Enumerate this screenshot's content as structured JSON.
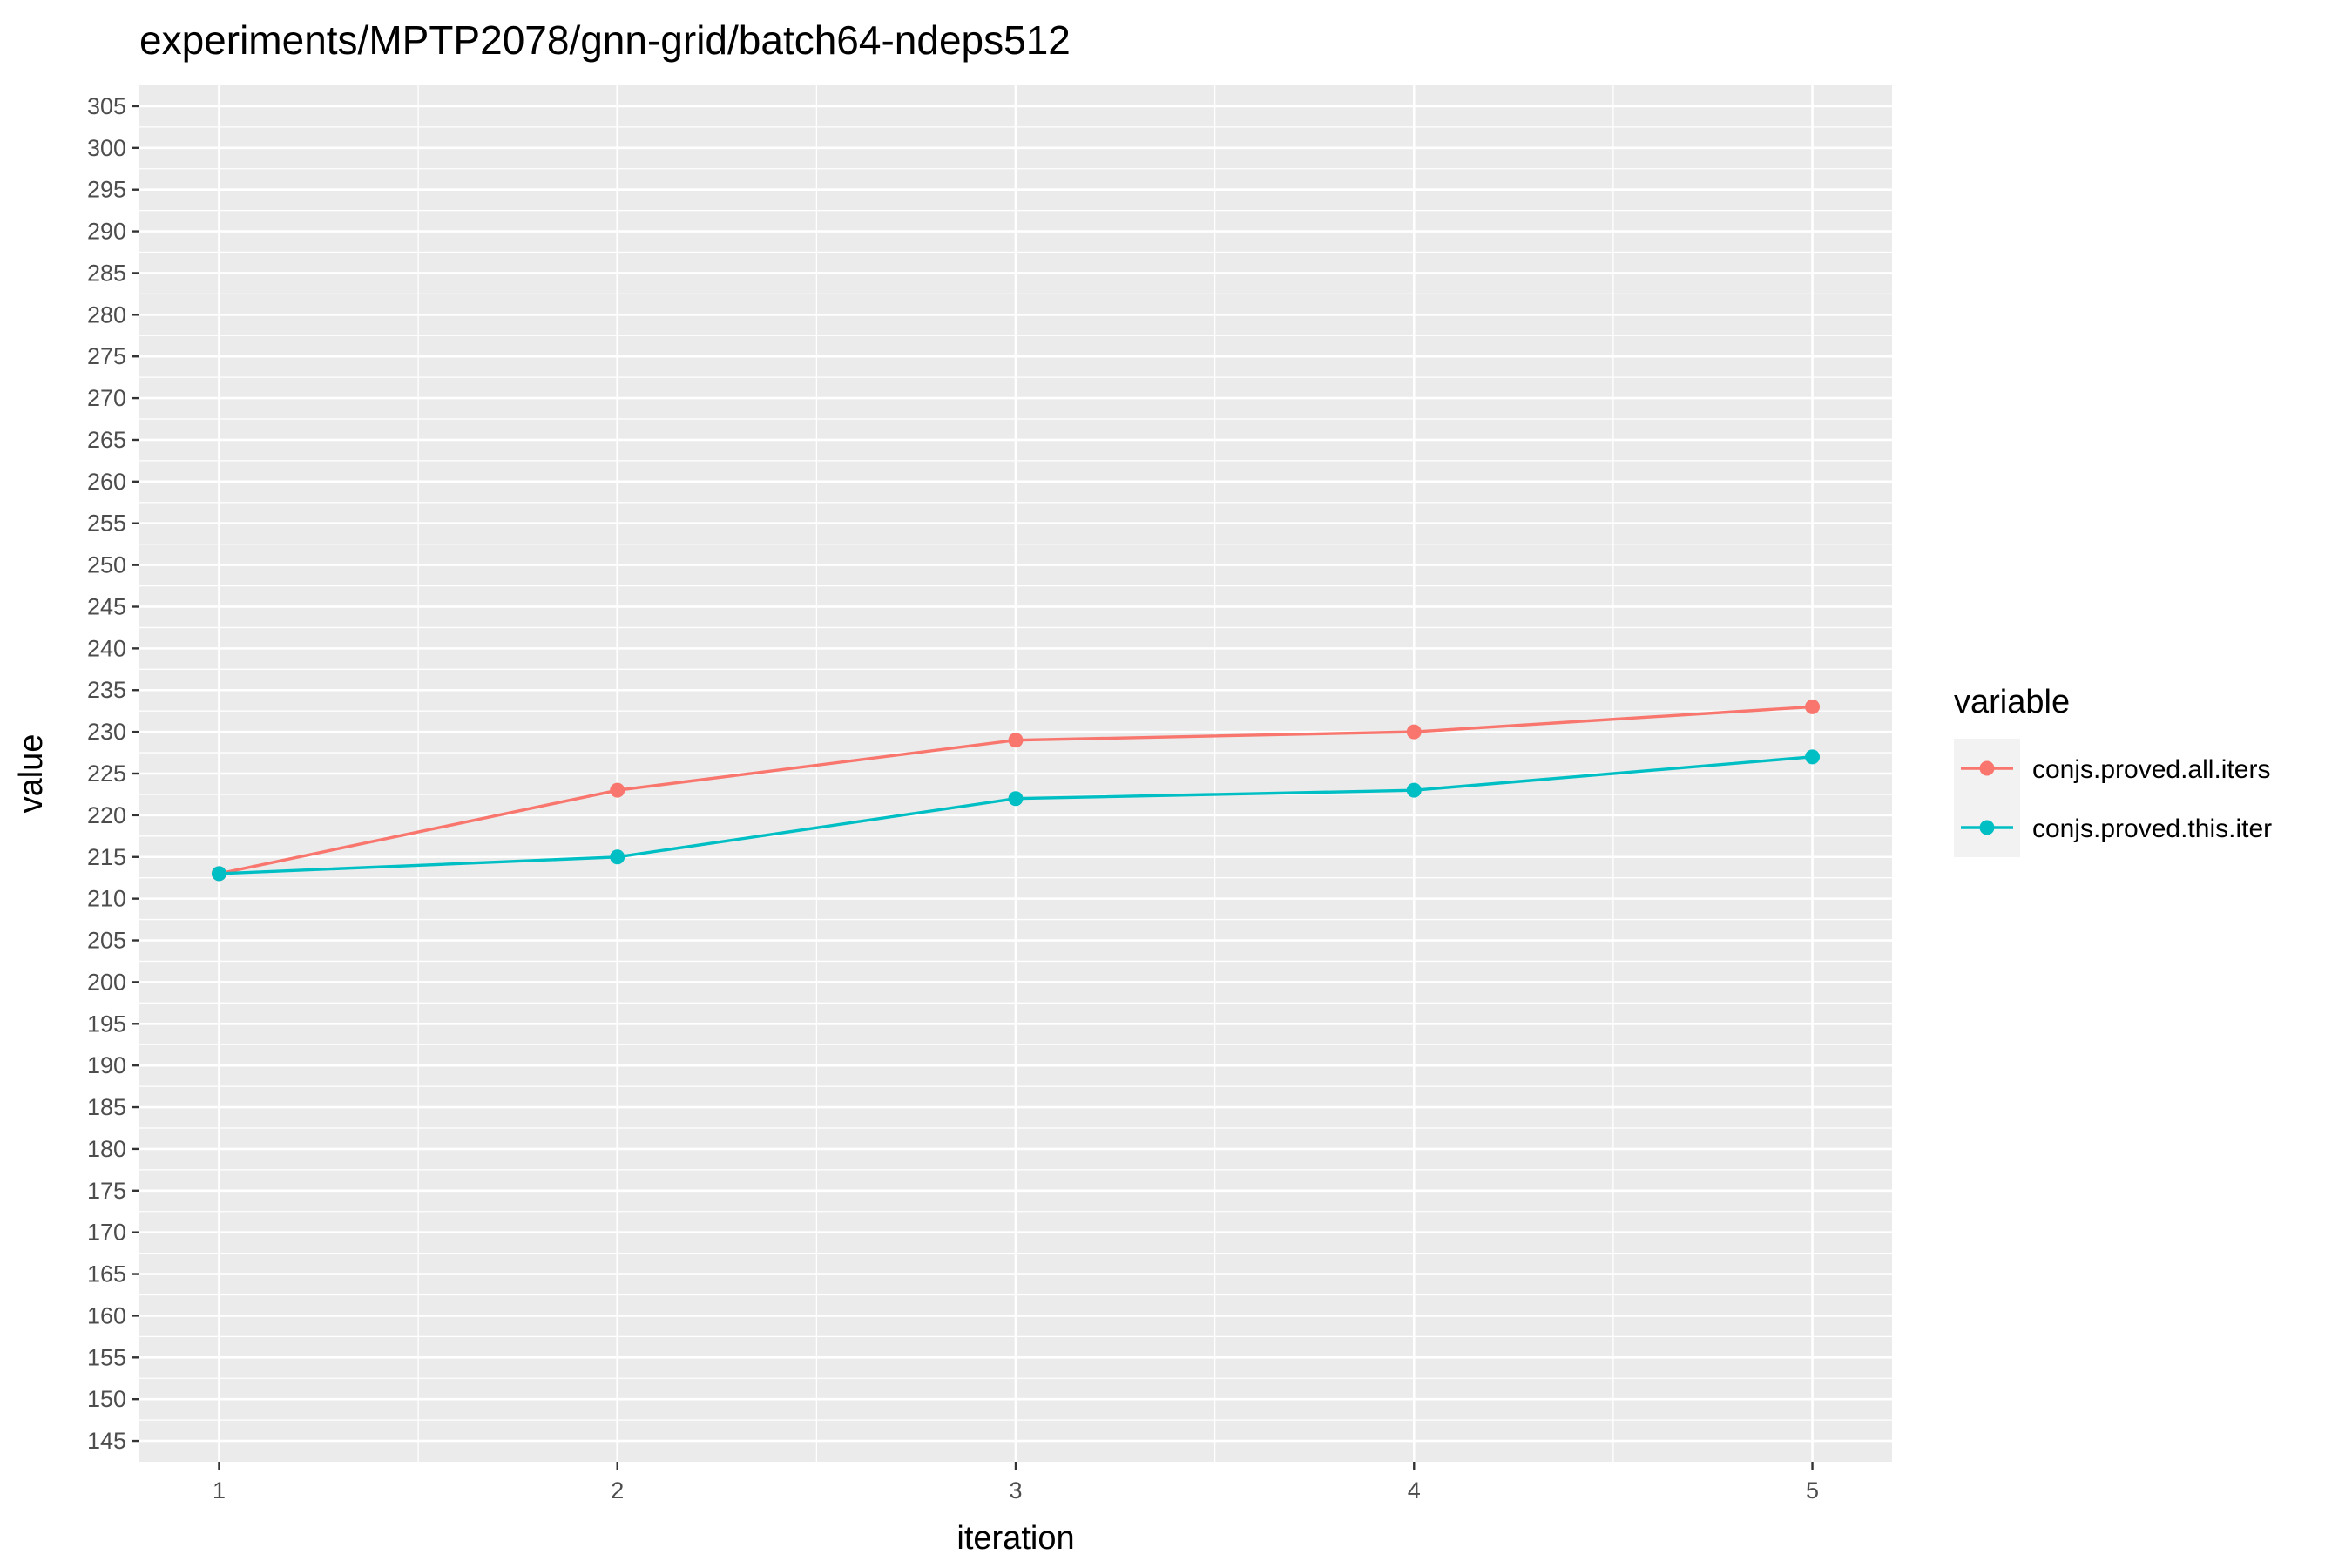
{
  "chart_data": {
    "type": "line",
    "title": "experiments/MPTP2078/gnn-grid/batch64-ndeps512",
    "xlabel": "iteration",
    "ylabel": "value",
    "x": [
      1,
      2,
      3,
      4,
      5
    ],
    "xlim": [
      0.8,
      5.2
    ],
    "ylim": [
      142.5,
      307.5
    ],
    "y_ticks": [
      145,
      150,
      155,
      160,
      165,
      170,
      175,
      180,
      185,
      190,
      195,
      200,
      205,
      210,
      215,
      220,
      225,
      230,
      235,
      240,
      245,
      250,
      255,
      260,
      265,
      270,
      275,
      280,
      285,
      290,
      295,
      300,
      305
    ],
    "x_ticks": [
      1,
      2,
      3,
      4,
      5
    ],
    "grid": true,
    "legend": {
      "title": "variable",
      "position": "right"
    },
    "series": [
      {
        "name": "conjs.proved.all.iters",
        "color": "#F8766D",
        "values": [
          213,
          223,
          229,
          230,
          233
        ]
      },
      {
        "name": "conjs.proved.this.iter",
        "color": "#00BFC4",
        "values": [
          213,
          215,
          222,
          223,
          227
        ]
      }
    ]
  }
}
